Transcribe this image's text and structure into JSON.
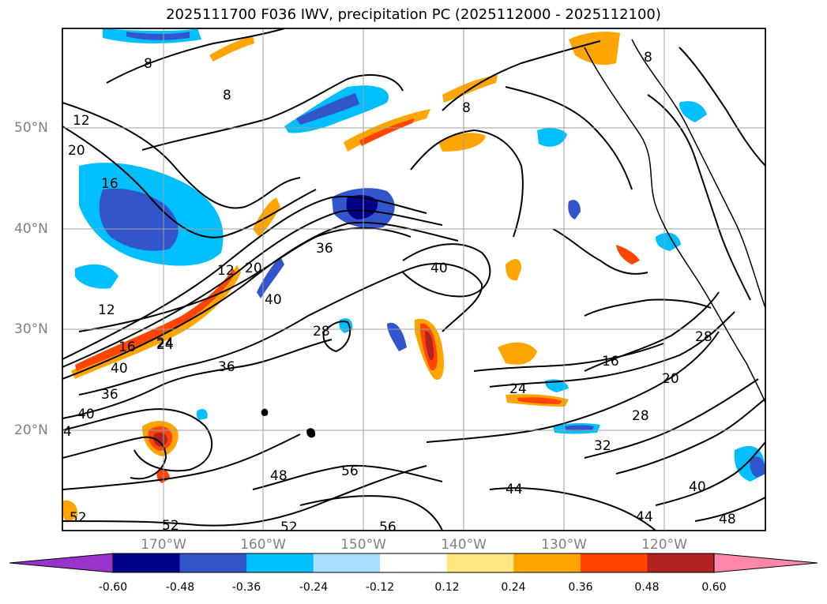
{
  "title": "2025111700 F036 IWV, precipitation PC (2025112000 - 2025112100)",
  "map": {
    "lon_labels": [
      "170°W",
      "160°W",
      "150°W",
      "140°W",
      "130°W",
      "120°W"
    ],
    "lat_labels": [
      "50°N",
      "40°N",
      "30°N",
      "20°N"
    ],
    "contour_labels": [
      "8",
      "8",
      "8",
      "12",
      "20",
      "16",
      "12",
      "12",
      "20",
      "36",
      "40",
      "28",
      "40",
      "16",
      "24",
      "40",
      "36",
      "40",
      "36",
      "24",
      "20",
      "28",
      "32",
      "48",
      "56",
      "44",
      "40",
      "48",
      "52",
      "52",
      "56",
      "44",
      "52",
      "4",
      "8",
      "24",
      "16",
      "28"
    ]
  },
  "colorbar": {
    "ticks": [
      "-0.60",
      "-0.48",
      "-0.36",
      "-0.24",
      "-0.12",
      "0.12",
      "0.24",
      "0.36",
      "0.48",
      "0.60"
    ],
    "colors": [
      "#9933cc",
      "#00008b",
      "#3355cc",
      "#00bfff",
      "#aaddff",
      "#ffffff",
      "#ffe680",
      "#ffa500",
      "#ff4500",
      "#b22222",
      "#ff88aa"
    ]
  }
}
